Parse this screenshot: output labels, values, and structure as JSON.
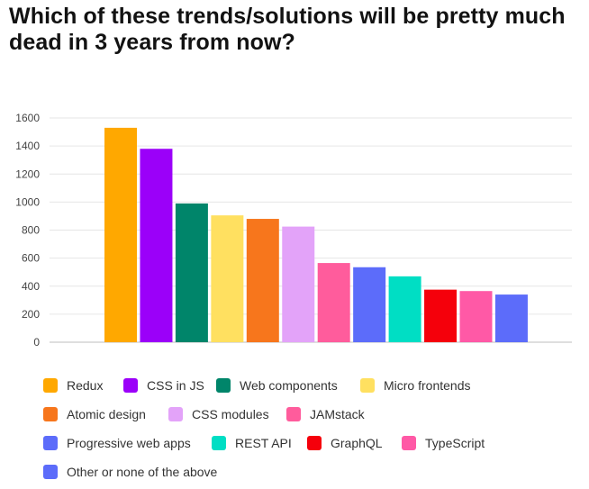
{
  "chart_data": {
    "type": "bar",
    "title": "Which of these trends/solutions will be pretty much dead in 3 years from now?",
    "xlabel": "",
    "ylabel": "",
    "ylim": [
      0,
      1600
    ],
    "yticks": [
      0,
      200,
      400,
      600,
      800,
      1000,
      1200,
      1400,
      1600
    ],
    "grid": true,
    "legend_position": "bottom",
    "categories": [
      "Redux",
      "CSS in JS",
      "Web components",
      "Micro frontends",
      "Atomic design",
      "CSS modules",
      "JAMstack",
      "Progressive web apps",
      "REST API",
      "GraphQL",
      "TypeScript",
      "Other or none of the above"
    ],
    "values": [
      1530,
      1380,
      990,
      905,
      880,
      825,
      565,
      535,
      470,
      375,
      365,
      340
    ],
    "colors": [
      "#ffa800",
      "#9b00f9",
      "#00856a",
      "#ffe060",
      "#f7761c",
      "#e3a3f9",
      "#ff5c9c",
      "#5c6cfa",
      "#00dec4",
      "#f5000b",
      "#ff59a6",
      "#5c6cfa"
    ]
  }
}
